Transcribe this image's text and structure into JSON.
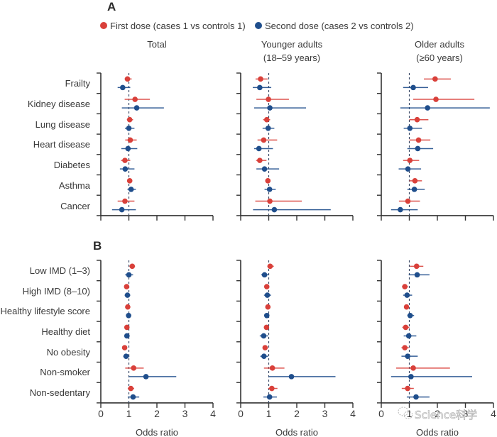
{
  "chart_data": {
    "type": "forest",
    "legend": [
      {
        "name": "First dose (cases 1 vs controls 1)",
        "color": "#d9403a"
      },
      {
        "name": "Second dose (cases 2 vs controls 2)",
        "color": "#1f4e8c"
      }
    ],
    "legend_placement": "top-center",
    "columns": [
      {
        "title_line1": "Total",
        "title_line2": ""
      },
      {
        "title_line1": "Younger adults",
        "title_line2": "(18–59 years)"
      },
      {
        "title_line1": "Older adults",
        "title_line2": "(≥60 years)"
      }
    ],
    "xlabel": "Odds ratio",
    "xlim": [
      0,
      4
    ],
    "xticks": [
      "0",
      "1",
      "2",
      "3",
      "4"
    ],
    "reference_line": 1,
    "panels": [
      {
        "letter": "A",
        "rows": [
          {
            "label": "Frailty",
            "values": [
              {
                "first": [
                  0.95,
                  0.85,
                  1.1
                ],
                "second": [
                  0.78,
                  0.6,
                  1.05
                ]
              },
              {
                "first": [
                  0.71,
                  0.53,
                  0.96
                ],
                "second": [
                  0.68,
                  0.43,
                  1.09
                ]
              },
              {
                "first": [
                  1.92,
                  1.52,
                  2.48
                ],
                "second": [
                  1.14,
                  0.78,
                  1.67
                ]
              }
            ]
          },
          {
            "label": "Kidney disease",
            "values": [
              {
                "first": [
                  1.22,
                  0.85,
                  1.75
                ],
                "second": [
                  1.28,
                  0.75,
                  2.25
                ]
              },
              {
                "first": [
                  0.99,
                  0.56,
                  1.72
                ],
                "second": [
                  1.04,
                  0.48,
                  2.33
                ]
              },
              {
                "first": [
                  1.95,
                  1.14,
                  3.32
                ],
                "second": [
                  1.65,
                  0.68,
                  3.87
                ]
              }
            ]
          },
          {
            "label": "Lung disease",
            "values": [
              {
                "first": [
                  1.03,
                  0.93,
                  1.15
                ],
                "second": [
                  1.0,
                  0.86,
                  1.2
                ]
              },
              {
                "first": [
                  0.93,
                  0.8,
                  1.05
                ],
                "second": [
                  0.98,
                  0.78,
                  1.2
                ]
              },
              {
                "first": [
                  1.28,
                  1.0,
                  1.68
                ],
                "second": [
                  1.02,
                  0.8,
                  1.45
                ]
              }
            ]
          },
          {
            "label": "Heart disease",
            "values": [
              {
                "first": [
                  1.05,
                  0.87,
                  1.28
                ],
                "second": [
                  0.97,
                  0.73,
                  1.3
                ]
              },
              {
                "first": [
                  0.82,
                  0.6,
                  1.3
                ],
                "second": [
                  0.65,
                  0.48,
                  1.15
                ]
              },
              {
                "first": [
                  1.33,
                  1.0,
                  1.75
                ],
                "second": [
                  1.3,
                  0.93,
                  1.85
                ]
              }
            ]
          },
          {
            "label": "Diabetes",
            "values": [
              {
                "first": [
                  0.86,
                  0.72,
                  1.05
                ],
                "second": [
                  0.87,
                  0.68,
                  1.2
                ]
              },
              {
                "first": [
                  0.68,
                  0.55,
                  0.92
                ],
                "second": [
                  0.85,
                  0.56,
                  1.37
                ]
              },
              {
                "first": [
                  1.02,
                  0.78,
                  1.35
                ],
                "second": [
                  0.95,
                  0.62,
                  1.42
                ]
              }
            ]
          },
          {
            "label": "Asthma",
            "values": [
              {
                "first": [
                  1.03,
                  0.96,
                  1.12
                ],
                "second": [
                  1.08,
                  0.95,
                  1.25
                ]
              },
              {
                "first": [
                  0.97,
                  0.88,
                  1.05
                ],
                "second": [
                  1.03,
                  0.85,
                  1.25
                ]
              },
              {
                "first": [
                  1.2,
                  1.0,
                  1.45
                ],
                "second": [
                  1.18,
                  0.93,
                  1.55
                ]
              }
            ]
          },
          {
            "label": "Cancer",
            "values": [
              {
                "first": [
                  0.86,
                  0.6,
                  1.2
                ],
                "second": [
                  0.75,
                  0.4,
                  1.25
                ]
              },
              {
                "first": [
                  1.04,
                  0.52,
                  2.18
                ],
                "second": [
                  1.2,
                  0.44,
                  3.21
                ]
              },
              {
                "first": [
                  0.95,
                  0.63,
                  1.38
                ],
                "second": [
                  0.68,
                  0.35,
                  1.3
                ]
              }
            ]
          }
        ]
      },
      {
        "letter": "B",
        "rows": [
          {
            "label": "Low IMD (1–3)",
            "values": [
              {
                "first": [
                  1.12,
                  1.02,
                  1.22
                ],
                "second": [
                  1.0,
                  0.87,
                  1.15
                ]
              },
              {
                "first": [
                  1.05,
                  0.95,
                  1.18
                ],
                "second": [
                  0.85,
                  0.73,
                  1.0
                ]
              },
              {
                "first": [
                  1.26,
                  1.02,
                  1.5
                ],
                "second": [
                  1.28,
                  0.98,
                  1.72
                ]
              }
            ]
          },
          {
            "label": "High IMD (8–10)",
            "values": [
              {
                "first": [
                  0.92,
                  0.85,
                  0.99
                ],
                "second": [
                  0.95,
                  0.85,
                  1.05
                ]
              },
              {
                "first": [
                  0.93,
                  0.86,
                  1.0
                ],
                "second": [
                  0.95,
                  0.83,
                  1.08
                ]
              },
              {
                "first": [
                  0.84,
                  0.74,
                  0.95
                ],
                "second": [
                  0.92,
                  0.78,
                  1.1
                ]
              }
            ]
          },
          {
            "label": "Healthy lifestyle score",
            "values": [
              {
                "first": [
                  0.96,
                  0.9,
                  1.02
                ],
                "second": [
                  0.99,
                  0.93,
                  1.06
                ]
              },
              {
                "first": [
                  0.97,
                  0.91,
                  1.02
                ],
                "second": [
                  0.93,
                  0.86,
                  1.0
                ]
              },
              {
                "first": [
                  0.9,
                  0.82,
                  0.98
                ],
                "second": [
                  1.03,
                  0.93,
                  1.17
                ]
              }
            ]
          },
          {
            "label": "Healthy diet",
            "values": [
              {
                "first": [
                  0.93,
                  0.86,
                  1.0
                ],
                "second": [
                  0.93,
                  0.84,
                  1.03
                ]
              },
              {
                "first": [
                  0.92,
                  0.84,
                  1.0
                ],
                "second": [
                  0.82,
                  0.68,
                  0.98
                ]
              },
              {
                "first": [
                  0.87,
                  0.75,
                  1.0
                ],
                "second": [
                  0.98,
                  0.8,
                  1.25
                ]
              }
            ]
          },
          {
            "label": "No obesity",
            "values": [
              {
                "first": [
                  0.85,
                  0.78,
                  0.93
                ],
                "second": [
                  0.9,
                  0.8,
                  1.02
                ]
              },
              {
                "first": [
                  0.87,
                  0.8,
                  0.95
                ],
                "second": [
                  0.83,
                  0.7,
                  0.98
                ]
              },
              {
                "first": [
                  0.84,
                  0.72,
                  0.98
                ],
                "second": [
                  0.94,
                  0.72,
                  1.3
                ]
              }
            ]
          },
          {
            "label": "Non-smoker",
            "values": [
              {
                "first": [
                  1.17,
                  0.87,
                  1.53
                ],
                "second": [
                  1.61,
                  1.0,
                  2.69
                ]
              },
              {
                "first": [
                  1.13,
                  0.83,
                  1.56
                ],
                "second": [
                  1.81,
                  1.0,
                  3.38
                ]
              },
              {
                "first": [
                  1.14,
                  0.53,
                  2.45
                ],
                "second": [
                  1.06,
                  0.35,
                  3.24
                ]
              }
            ]
          },
          {
            "label": "Non-sedentary",
            "values": [
              {
                "first": [
                  1.07,
                  0.96,
                  1.19
                ],
                "second": [
                  1.15,
                  0.96,
                  1.37
                ]
              },
              {
                "first": [
                  1.11,
                  0.98,
                  1.31
                ],
                "second": [
                  1.03,
                  0.81,
                  1.29
                ]
              },
              {
                "first": [
                  0.94,
                  0.73,
                  1.16
                ],
                "second": [
                  1.24,
                  0.91,
                  1.72
                ]
              }
            ]
          }
        ]
      }
    ]
  },
  "watermark": {
    "text": "Science科学",
    "icon": "wechat-icon"
  }
}
